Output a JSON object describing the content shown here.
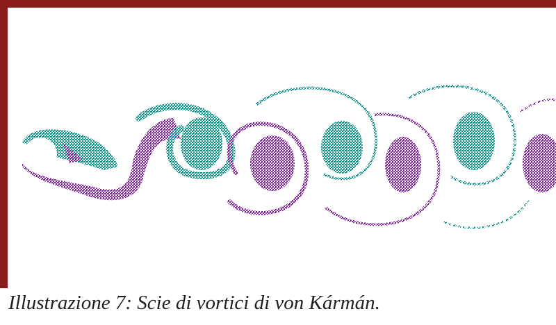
{
  "figure": {
    "caption": "Illustrazione 7: Scie di vortici di von Kármán."
  }
}
